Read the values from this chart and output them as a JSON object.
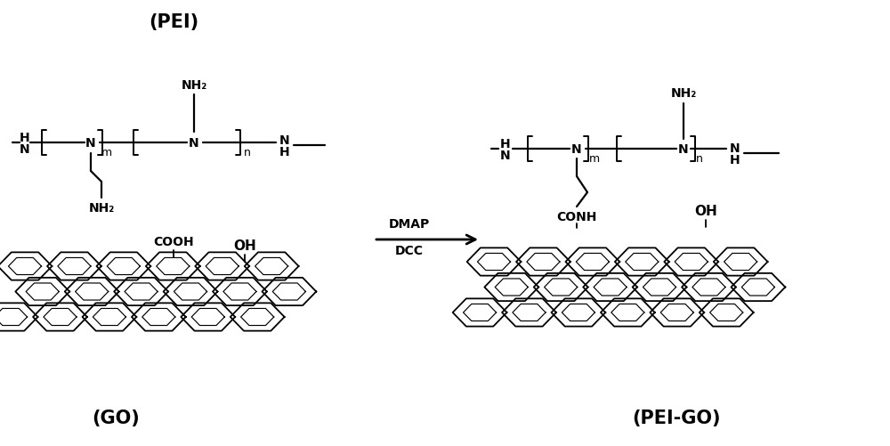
{
  "bg_color": "#ffffff",
  "fig_width": 10.0,
  "fig_height": 5.02,
  "dpi": 100,
  "label_PEI": "(PEI)",
  "label_GO": "(GO)",
  "label_PEIGO": "(PEI-GO)",
  "label_DMAP": "DMAP",
  "label_DCC": "DCC"
}
